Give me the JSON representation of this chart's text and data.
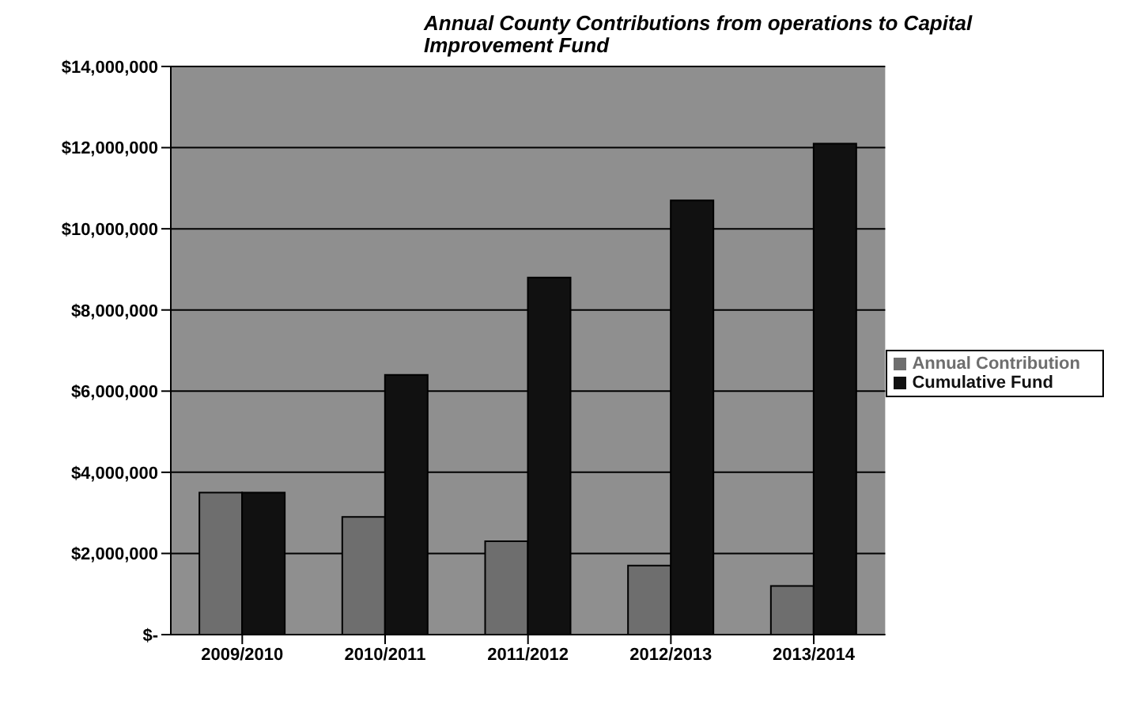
{
  "chart_data": {
    "type": "bar",
    "title": "Annual County Contributions from operations to Capital Improvement Fund",
    "categories": [
      "2009/2010",
      "2010/2011",
      "2011/2012",
      "2012/2013",
      "2013/2014"
    ],
    "series": [
      {
        "name": "Annual Contribution",
        "color": "#6e6e6e",
        "values": [
          3500000,
          2900000,
          2300000,
          1700000,
          1200000
        ]
      },
      {
        "name": "Cumulative Fund",
        "color": "#111111",
        "values": [
          3500000,
          6400000,
          8800000,
          10700000,
          12100000
        ]
      }
    ],
    "ylim": [
      0,
      14000000
    ],
    "yticks": [
      {
        "value": 0,
        "label": "$-"
      },
      {
        "value": 2000000,
        "label": "$2,000,000"
      },
      {
        "value": 4000000,
        "label": "$4,000,000"
      },
      {
        "value": 6000000,
        "label": "$6,000,000"
      },
      {
        "value": 8000000,
        "label": "$8,000,000"
      },
      {
        "value": 10000000,
        "label": "$10,000,000"
      },
      {
        "value": 12000000,
        "label": "$12,000,000"
      },
      {
        "value": 14000000,
        "label": "$14,000,000"
      }
    ],
    "grid": "y",
    "legend": "right"
  }
}
